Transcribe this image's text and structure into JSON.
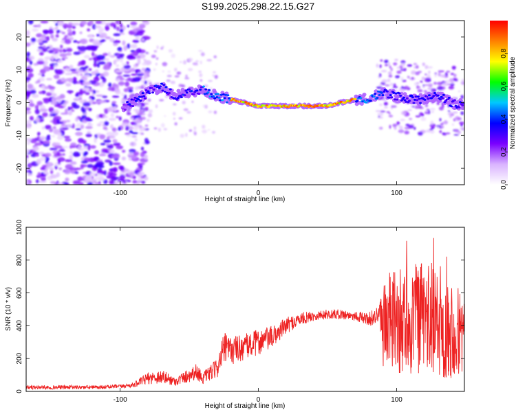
{
  "title": "S199.2025.298.22.15.G27",
  "chart_data": [
    {
      "type": "heatmap",
      "name": "spectrogram",
      "xlabel": "Height of straight line (km)",
      "ylabel": "Frequency (Hz)",
      "xlim": [
        -168,
        149
      ],
      "ylim": [
        -25,
        25
      ],
      "xticks": [
        -100,
        0,
        100
      ],
      "yticks": [
        -20,
        -10,
        0,
        10,
        20
      ],
      "colorbar": {
        "label": "Normalized spectral amplitude",
        "range": [
          0,
          1
        ],
        "ticks": [
          0.0,
          0.2,
          0.4,
          0.6,
          0.8
        ],
        "colormap": [
          "#ffffff",
          "#d9b3ff",
          "#7a00ff",
          "#0000ff",
          "#00c8ff",
          "#00ff00",
          "#ffff00",
          "#ff8000",
          "#ff0000"
        ]
      },
      "ridge": {
        "description": "frequency centre of the coherent signal band vs height",
        "x": [
          -95,
          -80,
          -70,
          -60,
          -50,
          -40,
          -30,
          -20,
          -10,
          0,
          10,
          20,
          30,
          40,
          50,
          60,
          70,
          80,
          90,
          100,
          110,
          120,
          130,
          140,
          149
        ],
        "y": [
          -1,
          3,
          5,
          2,
          3,
          4,
          2,
          1,
          0,
          -1,
          -1,
          -1,
          -1,
          -1,
          -1,
          0,
          1,
          1,
          3,
          2,
          1,
          1,
          2,
          0,
          -1
        ]
      }
    },
    {
      "type": "line",
      "name": "snr",
      "xlabel": "Height of straight line (km)",
      "ylabel": "SNR (10 * v/v)",
      "xlim": [
        -168,
        149
      ],
      "ylim": [
        0,
        1000
      ],
      "xticks": [
        -100,
        0,
        100
      ],
      "yticks": [
        0,
        200,
        400,
        600,
        800,
        1000
      ],
      "color": "#ee2222",
      "envelope": {
        "description": "mean SNR and noise spread vs height",
        "x": [
          -168,
          -120,
          -100,
          -90,
          -80,
          -70,
          -60,
          -50,
          -45,
          -40,
          -30,
          -25,
          -20,
          -10,
          0,
          10,
          20,
          30,
          40,
          50,
          60,
          70,
          80,
          88,
          90,
          100,
          110,
          120,
          130,
          140,
          149
        ],
        "mean": [
          25,
          25,
          30,
          40,
          80,
          90,
          60,
          100,
          120,
          80,
          140,
          260,
          250,
          270,
          300,
          330,
          400,
          440,
          460,
          470,
          470,
          460,
          440,
          470,
          430,
          420,
          430,
          450,
          400,
          380,
          370
        ],
        "spread": [
          12,
          12,
          12,
          15,
          35,
          45,
          25,
          45,
          50,
          35,
          60,
          100,
          90,
          80,
          80,
          70,
          50,
          40,
          30,
          30,
          30,
          30,
          40,
          70,
          300,
          320,
          340,
          350,
          320,
          300,
          280
        ]
      }
    }
  ]
}
